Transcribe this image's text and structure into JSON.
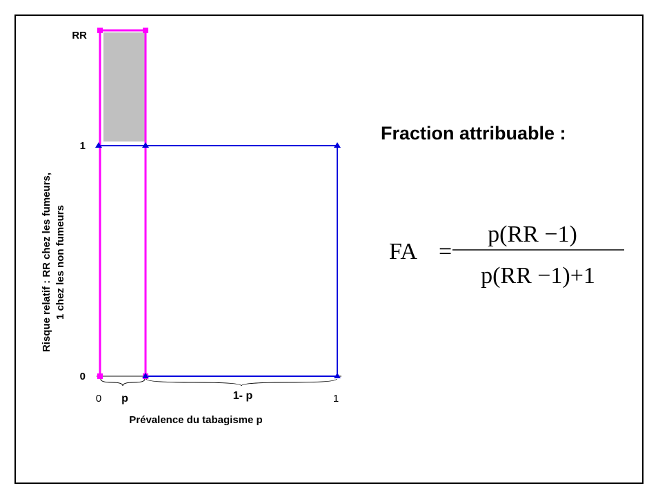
{
  "y_axis": {
    "title_line1": "Risque relatif : RR chez les fumeurs,",
    "title_line2": "1 chez les non fumeurs",
    "labels": [
      "RR",
      "1",
      "0"
    ]
  },
  "x_axis": {
    "title": "Prévalence du tabagisme p",
    "end_labels": [
      "0",
      "1"
    ],
    "segment_labels": [
      "p",
      "1- p"
    ]
  },
  "heading": "Fraction attribuable :",
  "formula": {
    "lhs": "FA",
    "equals": "=",
    "numerator": "p(RR −1)",
    "denominator": "p(RR −1)+1"
  }
}
